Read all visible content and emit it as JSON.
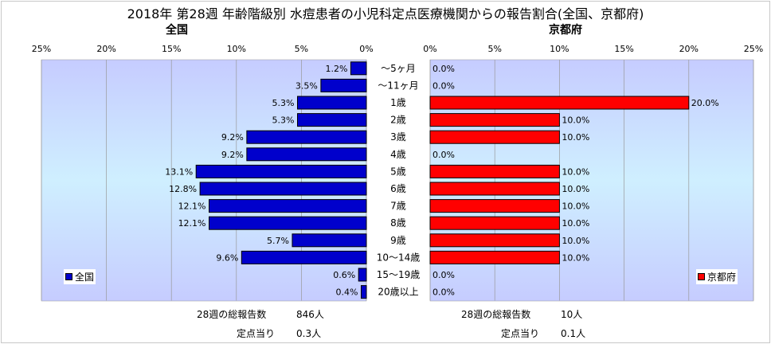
{
  "title": "2018年 第28週 年齢階級別 水痘患者の小児科定点医療機関からの報告割合(全国、京都府)",
  "chart_data": [
    {
      "type": "bar",
      "orientation": "horizontal",
      "title": "全国",
      "categories": [
        "～5ヶ月",
        "～11ヶ月",
        "1歳",
        "2歳",
        "3歳",
        "4歳",
        "5歳",
        "6歳",
        "7歳",
        "8歳",
        "9歳",
        "10～14歳",
        "15～19歳",
        "20歳以上"
      ],
      "series": [
        {
          "name": "全国",
          "color": "#0000cc",
          "values": [
            1.2,
            3.5,
            5.3,
            5.3,
            9.2,
            9.2,
            13.1,
            12.8,
            12.1,
            12.1,
            5.7,
            9.6,
            0.6,
            0.4
          ]
        }
      ],
      "data_labels": [
        "1.2%",
        "3.5%",
        "5.3%",
        "5.3%",
        "9.2%",
        "9.2%",
        "13.1%",
        "12.8%",
        "12.1%",
        "12.1%",
        "5.7%",
        "9.6%",
        "0.6%",
        "0.4%"
      ],
      "xlim": [
        0,
        25
      ],
      "x_reversed": true,
      "tick_labels": [
        "25%",
        "20%",
        "15%",
        "10%",
        "5%",
        "0%"
      ],
      "grid": true,
      "legend": "lower-left"
    },
    {
      "type": "bar",
      "orientation": "horizontal",
      "title": "京都府",
      "categories": [
        "～5ヶ月",
        "～11ヶ月",
        "1歳",
        "2歳",
        "3歳",
        "4歳",
        "5歳",
        "6歳",
        "7歳",
        "8歳",
        "9歳",
        "10～14歳",
        "15～19歳",
        "20歳以上"
      ],
      "series": [
        {
          "name": "京都府",
          "color": "#ff0000",
          "values": [
            0,
            0,
            20,
            10,
            10,
            0,
            10,
            10,
            10,
            10,
            10,
            10,
            0,
            0
          ]
        }
      ],
      "data_labels": [
        "0.0%",
        "0.0%",
        "20.0%",
        "10.0%",
        "10.0%",
        "0.0%",
        "10.0%",
        "10.0%",
        "10.0%",
        "10.0%",
        "10.0%",
        "10.0%",
        "0.0%",
        "0.0%"
      ],
      "xlim": [
        0,
        25
      ],
      "tick_labels": [
        "0%",
        "5%",
        "10%",
        "15%",
        "20%",
        "25%"
      ],
      "grid": true,
      "legend": "lower-right"
    }
  ],
  "footer": {
    "left_total_label": "28週の総報告数",
    "left_total_value": "846人",
    "left_per_label": "定点当り",
    "left_per_value": "0.3人",
    "right_total_label": "28週の総報告数",
    "right_total_value": "10人",
    "right_per_label": "定点当り",
    "right_per_value": "0.1人"
  }
}
